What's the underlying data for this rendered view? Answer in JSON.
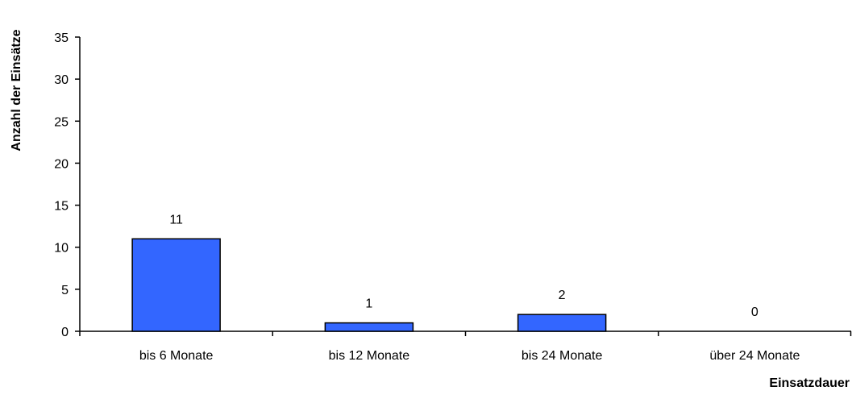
{
  "chart_data": {
    "type": "bar",
    "title": "",
    "xlabel": "Einsatzdauer",
    "ylabel": "Anzahl der Einsätze",
    "categories": [
      "bis 6 Monate",
      "bis 12 Monate",
      "bis 24 Monate",
      "über 24 Monate"
    ],
    "values": [
      11,
      1,
      2,
      0
    ],
    "data_labels": [
      "11",
      "1",
      "2",
      "0"
    ],
    "ylim": [
      0,
      35
    ],
    "yticks": [
      0,
      5,
      10,
      15,
      20,
      25,
      30,
      35
    ],
    "ytick_labels": [
      "0",
      "5",
      "10",
      "15",
      "20",
      "25",
      "30",
      "35"
    ],
    "grid": false,
    "legend": "none",
    "colors": {
      "bar": "#3366ff",
      "bar_stroke": "#000000",
      "axis": "#000000"
    }
  }
}
